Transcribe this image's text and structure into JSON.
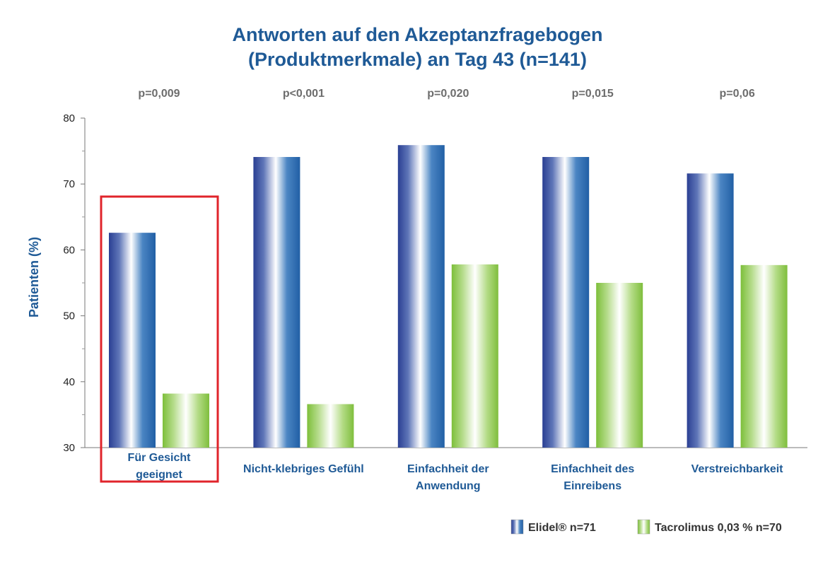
{
  "chart_data": {
    "type": "bar",
    "title_line1": "Antworten auf den Akzeptanzfragebogen",
    "title_line2": "(Produktmerkmale) an Tag 43 (n=141)",
    "ylabel": "Patienten (%)",
    "xlabel": "",
    "ylim": [
      30,
      80
    ],
    "yticks": [
      "30",
      "40",
      "50",
      "60",
      "70",
      "80"
    ],
    "categories": [
      [
        "Für Gesicht",
        "geeignet"
      ],
      [
        "Nicht-klebriges Gefühl"
      ],
      [
        "Einfachheit der",
        "Anwendung"
      ],
      [
        "Einfachheit des",
        "Einreibens"
      ],
      [
        "Verstreichbarkeit"
      ]
    ],
    "pvalues": [
      "p=0,009",
      "p<0,001",
      "p=0,020",
      "p=0,015",
      "p=0,06"
    ],
    "series": [
      {
        "name": "Elidel® n=71",
        "values": [
          62.6,
          74.1,
          75.9,
          74.1,
          71.6
        ]
      },
      {
        "name": "Tacrolimus 0,03 % n=70",
        "values": [
          38.2,
          36.6,
          57.8,
          55.0,
          57.7
        ]
      }
    ],
    "highlighted_category_index": 0,
    "grid": false,
    "legend_position": "bottom-right",
    "colors": {
      "title": "#1f5a96",
      "pvalue": "#6d6d6d",
      "category_label": "#1f5a96",
      "highlight_box": "#e0242b",
      "series1_dark": "#2a3f93",
      "series1_mid": "#ffffff",
      "series1_edge": "#2d6fb4",
      "series2_dark": "#7dbf3a",
      "series2_mid": "#ffffff",
      "series2_edge": "#8cc63e"
    }
  }
}
